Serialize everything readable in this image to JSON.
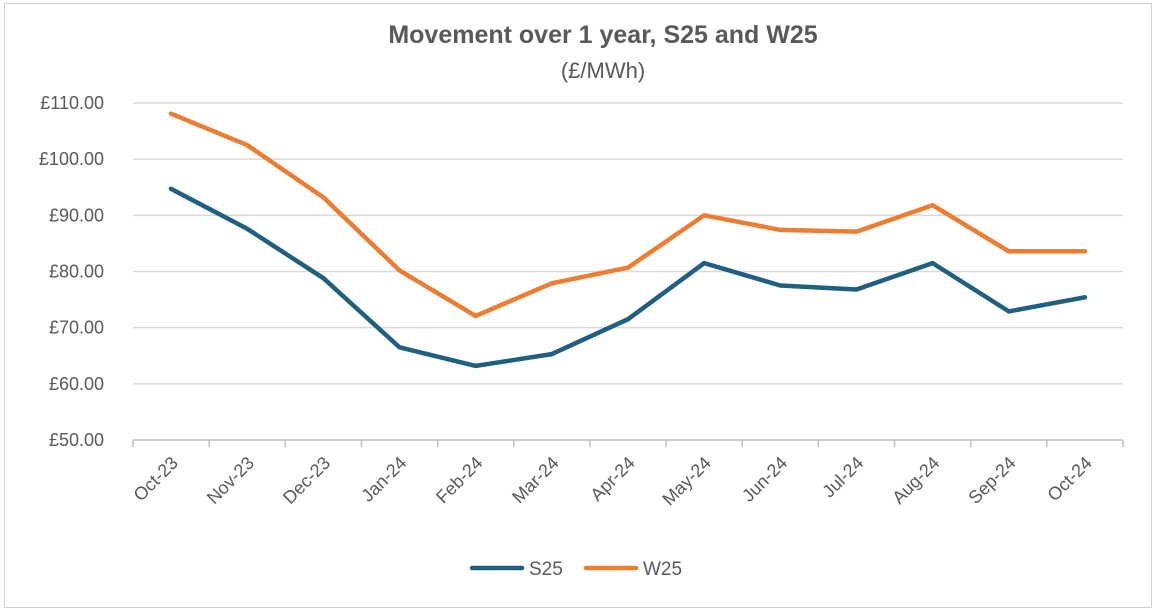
{
  "chart_data": {
    "type": "line",
    "title": "Movement over 1 year, S25 and W25",
    "subtitle": "(£/MWh)",
    "xlabel": "",
    "ylabel": "",
    "categories": [
      "Oct-23",
      "Nov-23",
      "Dec-23",
      "Jan-24",
      "Feb-24",
      "Mar-24",
      "Apr-24",
      "May-24",
      "Jun-24",
      "Jul-24",
      "Aug-24",
      "Sep-24",
      "Oct-24"
    ],
    "ylim": [
      50,
      110
    ],
    "yticks": [
      50,
      60,
      70,
      80,
      90,
      100,
      110
    ],
    "ytick_labels": [
      "£50.00",
      "£60.00",
      "£70.00",
      "£80.00",
      "£90.00",
      "£100.00",
      "£110.00"
    ],
    "grid": true,
    "legend_position": "bottom",
    "series": [
      {
        "name": "S25",
        "color": "#1f5f7f",
        "values": [
          94.7,
          87.6,
          78.8,
          66.5,
          63.2,
          65.3,
          71.5,
          81.5,
          77.5,
          76.8,
          81.5,
          72.9,
          75.4
        ]
      },
      {
        "name": "W25",
        "color": "#ed7d31",
        "values": [
          108.1,
          102.5,
          93.2,
          80.2,
          72.1,
          77.9,
          80.7,
          90.0,
          87.4,
          87.1,
          91.8,
          83.6,
          83.6
        ]
      }
    ]
  }
}
